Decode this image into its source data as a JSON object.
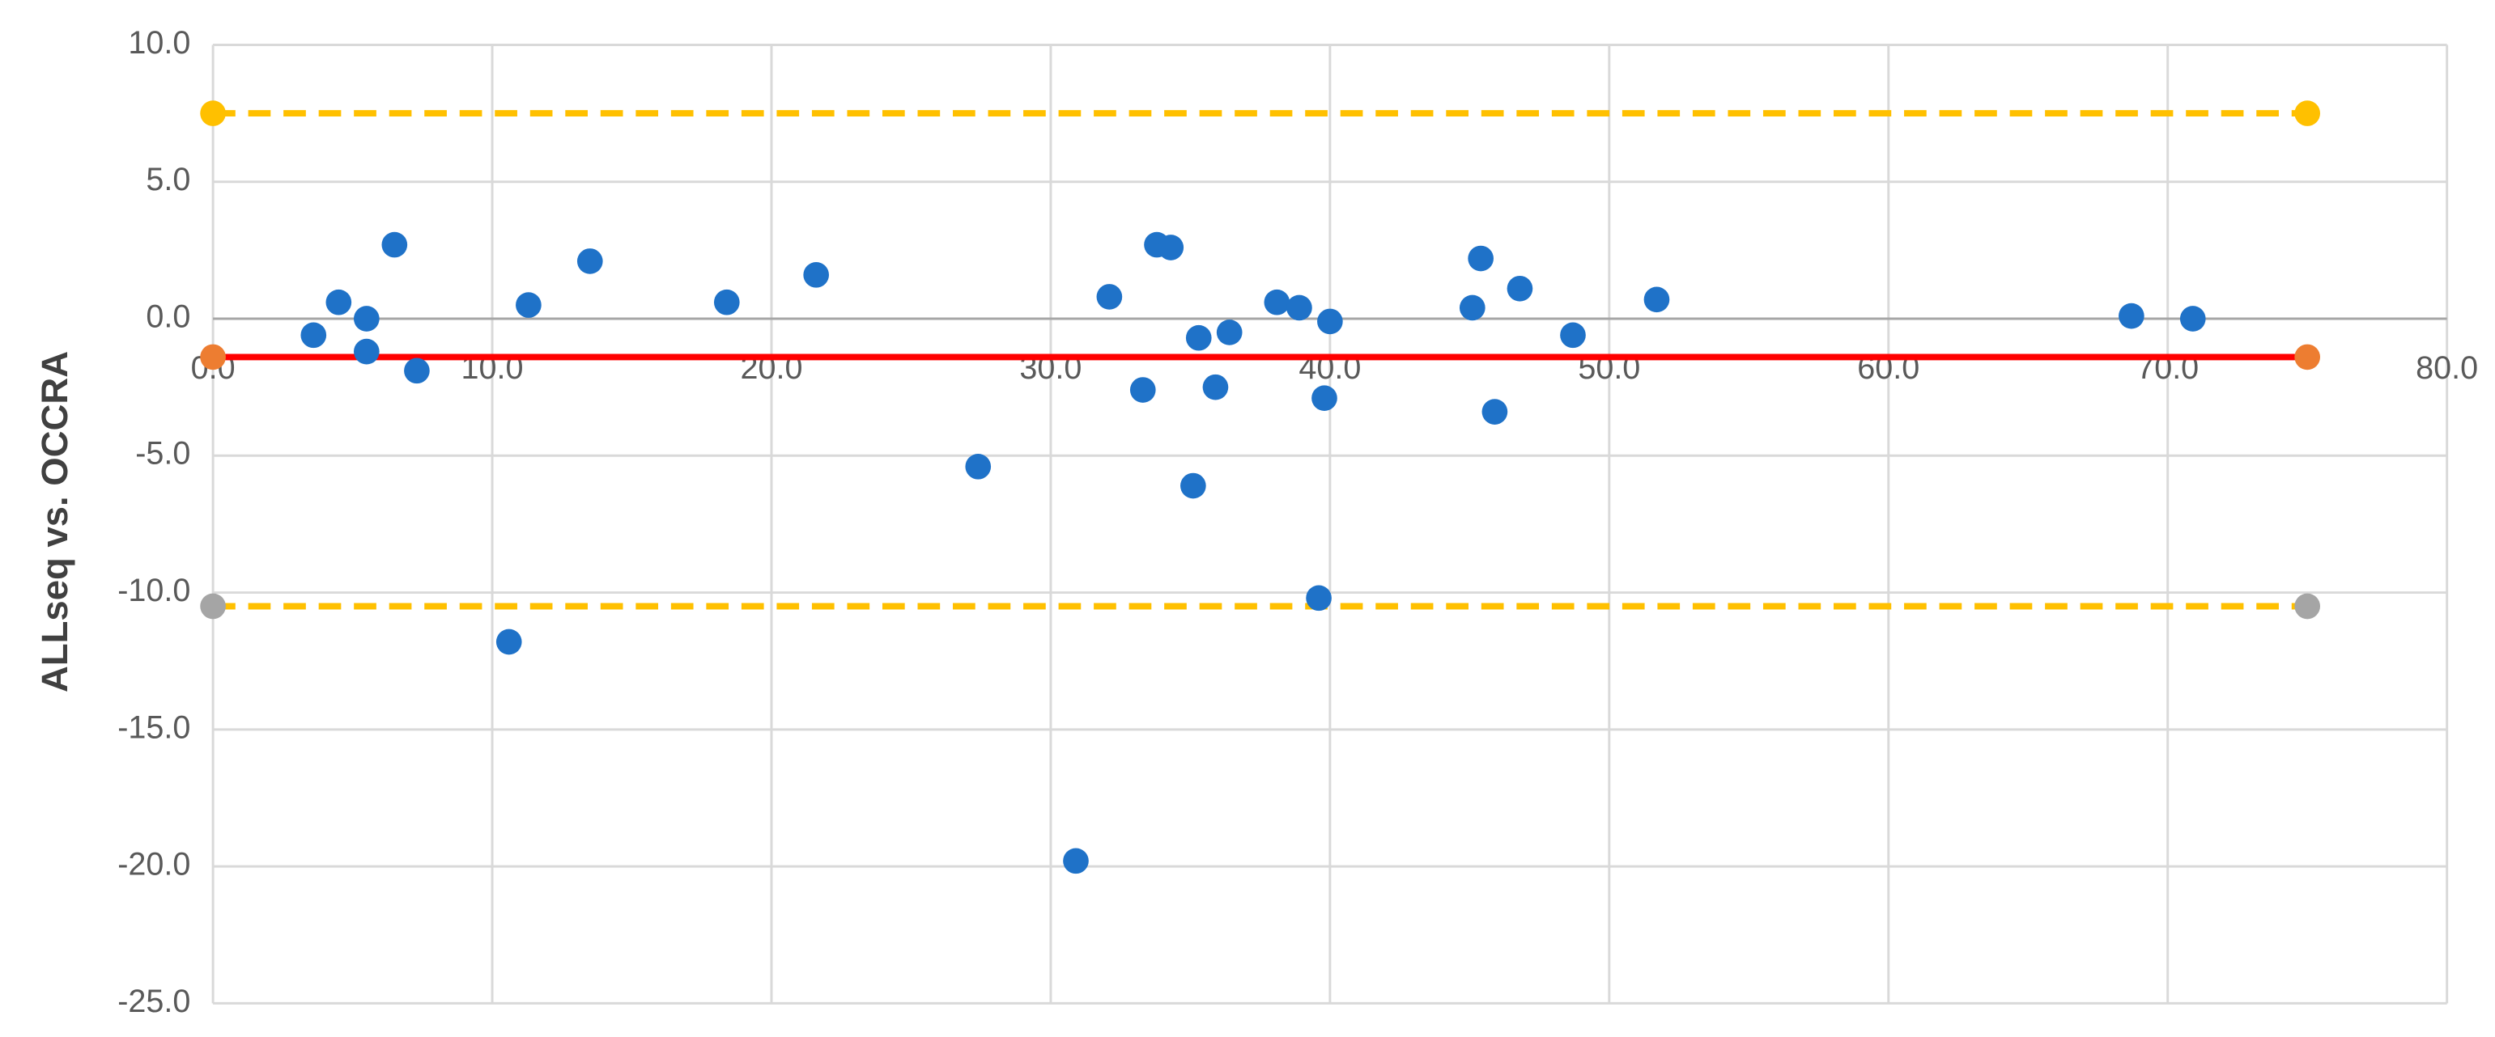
{
  "chart_data": {
    "type": "scatter",
    "y_label": "ALLseq vs. OCCRA",
    "color": "#1f72c8",
    "x": [
      3.6,
      4.5,
      5.5,
      5.5,
      6.5,
      7.3,
      10.6,
      11.3,
      13.5,
      18.4,
      21.6,
      27.4,
      30.9,
      32.1,
      33.3,
      33.8,
      34.3,
      35.1,
      35.3,
      35.9,
      36.4,
      38.1,
      38.9,
      39.6,
      39.8,
      40.0,
      45.1,
      45.4,
      45.9,
      46.8,
      48.7,
      51.7,
      68.7,
      70.9
    ],
    "y": [
      -0.6,
      0.6,
      0.0,
      -1.2,
      2.7,
      -1.9,
      -11.8,
      0.5,
      2.1,
      0.6,
      1.6,
      -5.4,
      -19.8,
      0.8,
      -2.6,
      2.7,
      2.6,
      -6.1,
      -0.7,
      -2.5,
      -0.5,
      0.6,
      0.4,
      -10.2,
      -2.9,
      -0.1,
      0.4,
      2.2,
      -3.4,
      1.1,
      -0.6,
      0.7,
      0.1,
      0.0
    ],
    "reference_lines": [
      {
        "y": 7.5,
        "x": [
          0,
          75
        ],
        "color": "#ffc000",
        "dashed": true,
        "marker_color": "#ffc000"
      },
      {
        "y": -1.4,
        "x": [
          0,
          75
        ],
        "color": "#ff0000",
        "dashed": false,
        "marker_color": "#ed7d31"
      },
      {
        "y": -10.5,
        "x": [
          0,
          75
        ],
        "color": "#ffc000",
        "dashed": true,
        "marker_color": "#a5a5a5"
      }
    ],
    "xlim": [
      0,
      80
    ],
    "ylim": [
      -25,
      10
    ],
    "xticks": [
      {
        "value": 0,
        "label": "0.0"
      },
      {
        "value": 10,
        "label": "10.0"
      },
      {
        "value": 20,
        "label": "20.0"
      },
      {
        "value": 30,
        "label": "30.0"
      },
      {
        "value": 40,
        "label": "40.0"
      },
      {
        "value": 50,
        "label": "50.0"
      },
      {
        "value": 60,
        "label": "60.0"
      },
      {
        "value": 70,
        "label": "70.0"
      },
      {
        "value": 80,
        "label": "80.0"
      }
    ],
    "yticks": [
      {
        "value": -25,
        "label": "-25.0"
      },
      {
        "value": -20,
        "label": "-20.0"
      },
      {
        "value": -15,
        "label": "-15.0"
      },
      {
        "value": -10,
        "label": "-10.0"
      },
      {
        "value": -5,
        "label": "-5.0"
      },
      {
        "value": 0,
        "label": "0.0"
      },
      {
        "value": 5,
        "label": "5.0"
      },
      {
        "value": 10,
        "label": "10.0"
      }
    ],
    "grid": true
  }
}
